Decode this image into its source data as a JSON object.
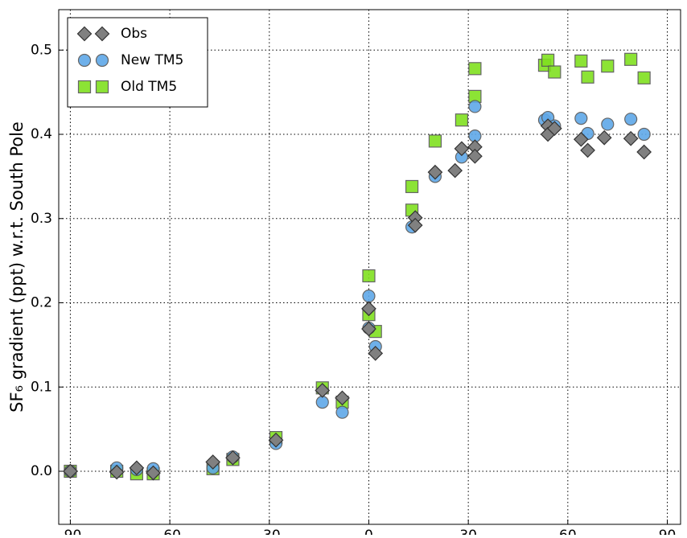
{
  "chart_data": {
    "type": "scatter",
    "ylabel": "SF₆ gradient (ppt) w.r.t. South Pole",
    "xlim": [
      -93.5,
      94
    ],
    "ylim": [
      -0.063,
      0.548
    ],
    "xticks": [
      -90,
      -60,
      -30,
      0,
      30,
      60,
      90
    ],
    "yticks": [
      {
        "value": 0,
        "label": "0.0"
      },
      0.1,
      0.2,
      0.3,
      0.4,
      0.5
    ],
    "grid": true,
    "legend": "upper left",
    "series": [
      {
        "name": "Obs",
        "color": "#808080",
        "marker": "diamond",
        "x": [
          -90,
          -76,
          -70,
          -65,
          -47,
          -41,
          -28,
          -14,
          -8,
          0,
          0,
          2,
          14,
          14,
          20,
          26,
          28,
          32,
          32,
          54,
          54,
          56,
          64,
          66,
          71,
          79,
          83
        ],
        "values": [
          0.0,
          -0.001,
          0.004,
          -0.002,
          0.011,
          0.016,
          0.037,
          0.096,
          0.087,
          0.193,
          0.169,
          0.14,
          0.301,
          0.292,
          0.355,
          0.357,
          0.383,
          0.385,
          0.374,
          0.41,
          0.4,
          0.407,
          0.394,
          0.381,
          0.396,
          0.395,
          0.379
        ]
      },
      {
        "name": "New TM5",
        "color": "#5fa8e8",
        "marker": "circle",
        "x": [
          -90,
          -76,
          -70,
          -65,
          -47,
          -41,
          -28,
          -14,
          -8,
          0,
          0,
          2,
          13,
          20,
          28,
          32,
          32,
          53,
          54,
          56,
          64,
          66,
          72,
          79,
          83
        ],
        "values": [
          0.0,
          0.004,
          0.002,
          0.003,
          0.004,
          0.017,
          0.033,
          0.082,
          0.07,
          0.208,
          0.17,
          0.148,
          0.29,
          0.35,
          0.373,
          0.433,
          0.398,
          0.417,
          0.42,
          0.41,
          0.419,
          0.401,
          0.412,
          0.418,
          0.4
        ]
      },
      {
        "name": "Old TM5",
        "color": "#80e020",
        "marker": "square",
        "x": [
          -90,
          -76,
          -70,
          -65,
          -47,
          -41,
          -28,
          -14,
          -8,
          0,
          0,
          2,
          13,
          13,
          20,
          28,
          32,
          32,
          53,
          54,
          56,
          64,
          66,
          72,
          79,
          83
        ],
        "values": [
          0.0,
          0.0,
          -0.003,
          -0.003,
          0.003,
          0.014,
          0.04,
          0.099,
          0.082,
          0.232,
          0.186,
          0.166,
          0.338,
          0.31,
          0.392,
          0.417,
          0.478,
          0.445,
          0.482,
          0.488,
          0.474,
          0.487,
          0.468,
          0.481,
          0.489,
          0.467
        ]
      }
    ]
  }
}
